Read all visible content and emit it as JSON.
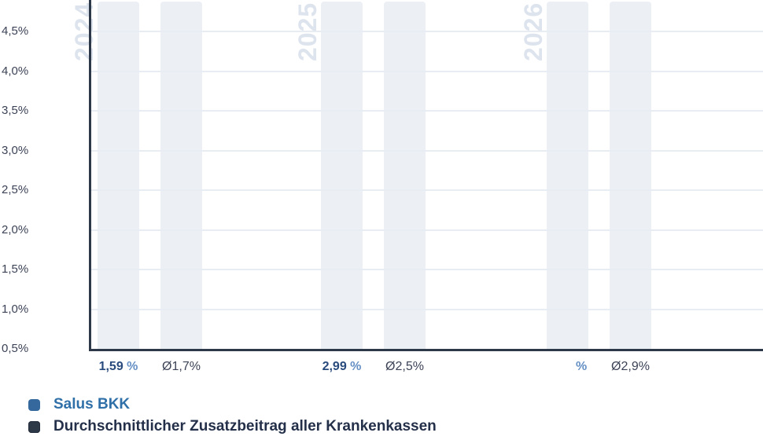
{
  "chart_data": {
    "type": "bar",
    "categories": [
      "2024",
      "2025",
      "2026"
    ],
    "series": [
      {
        "name": "Salus BKK",
        "values": [
          1.59,
          2.99,
          null
        ],
        "labels": [
          "1,59",
          "2,99",
          ""
        ],
        "label_suffix": "%",
        "color": "#35699e"
      },
      {
        "name": "Durchschnittlicher Zusatzbeitrag aller Krankenkassen",
        "values": [
          1.7,
          2.5,
          2.9
        ],
        "labels": [
          "Ø1,7%",
          "Ø2,5%",
          "Ø2,9%"
        ],
        "color": "#2e3948"
      }
    ],
    "title": "",
    "xlabel": "",
    "ylabel": "",
    "ylim": [
      0.5,
      4.9
    ],
    "yticks": [
      "0,5%",
      "1,0%",
      "1,5%",
      "2,0%",
      "2,5%",
      "3,0%",
      "3,5%",
      "4,0%",
      "4,5%"
    ],
    "grid": true,
    "legend_position": "bottom-left",
    "colors": {
      "salus_bar": "#35699e",
      "avg_bar": "#2e3948",
      "column_background": "#ecf0f5",
      "gridline": "#e8edf4",
      "axis": "#2d3848",
      "watermark": "#dde4ee",
      "value_number": "#294a7c",
      "value_percent": "#6690c4",
      "tick_text": "#3c4356"
    }
  }
}
